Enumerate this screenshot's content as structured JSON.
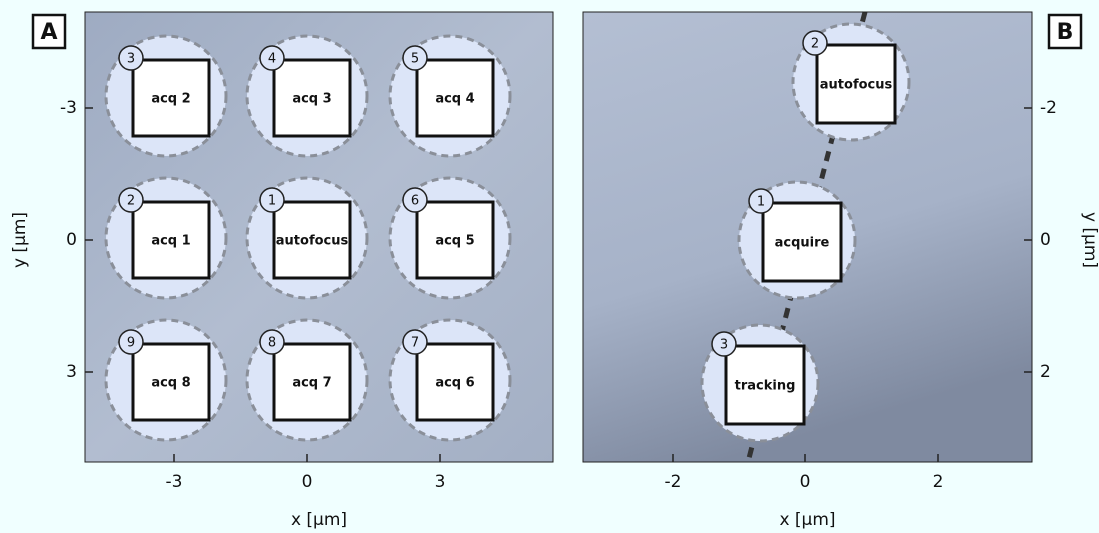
{
  "panels": [
    {
      "label": "A",
      "x_ticks": [
        -3,
        0,
        3
      ],
      "y_ticks": [
        -3,
        0,
        3
      ],
      "x_label": "x [µm]",
      "y_label": "y [µm]",
      "spots": [
        {
          "number": 3,
          "label": "acq 2"
        },
        {
          "number": 4,
          "label": "acq 3"
        },
        {
          "number": 5,
          "label": "acq 4"
        },
        {
          "number": 2,
          "label": "acq 1"
        },
        {
          "number": 1,
          "label": "autofocus"
        },
        {
          "number": 6,
          "label": "acq 5"
        },
        {
          "number": 9,
          "label": "acq 8"
        },
        {
          "number": 8,
          "label": "acq 7"
        },
        {
          "number": 7,
          "label": "acq 6"
        }
      ]
    },
    {
      "label": "B",
      "x_ticks": [
        -2,
        0,
        2
      ],
      "y_ticks": [
        -2,
        0,
        2
      ],
      "x_label": "x [µm]",
      "y_label": "y [µm]",
      "spots": [
        {
          "number": 2,
          "label": "autofocus"
        },
        {
          "number": 1,
          "label": "acquire"
        },
        {
          "number": 3,
          "label": "tracking"
        }
      ]
    }
  ]
}
